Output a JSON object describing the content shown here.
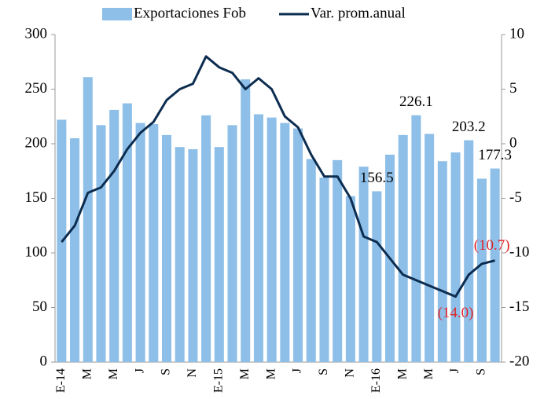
{
  "chart_data": {
    "type": "bar-line",
    "categories": [
      "E-14",
      null,
      "M",
      null,
      "M",
      null,
      "J",
      null,
      "S",
      null,
      "N",
      null,
      "E-15",
      null,
      "M",
      null,
      "M",
      null,
      "J",
      null,
      "S",
      null,
      "N",
      null,
      "E-16",
      null,
      "M",
      null,
      "M",
      null,
      "J",
      null,
      "S",
      null
    ],
    "series": [
      {
        "name": "Exportaciones Fob",
        "type": "bar",
        "color": "#8dbfe8",
        "values": [
          222,
          205,
          261,
          217,
          231,
          237,
          219,
          218,
          208,
          197,
          195,
          226,
          197,
          217,
          259,
          227,
          224,
          219,
          214,
          186,
          169,
          185,
          152,
          179,
          156.5,
          190,
          208,
          226.1,
          209,
          184,
          192,
          203.2,
          168,
          177.3
        ],
        "value_labels": [
          null,
          null,
          null,
          null,
          null,
          null,
          null,
          null,
          null,
          null,
          null,
          null,
          null,
          null,
          null,
          null,
          null,
          null,
          null,
          null,
          null,
          null,
          null,
          null,
          "156.5",
          null,
          null,
          "226.1",
          null,
          null,
          null,
          "203.2",
          null,
          "177.3"
        ]
      },
      {
        "name": "Var. prom.anual",
        "type": "line",
        "axis": "y2",
        "color": "#0d2d50",
        "values": [
          -9,
          -7.5,
          -4.5,
          -4,
          -2.5,
          -0.5,
          1,
          2,
          4,
          5,
          5.5,
          8,
          7,
          6.5,
          5,
          6,
          5,
          2.5,
          1.5,
          -1,
          -3,
          -3,
          -5,
          -8.5,
          -9,
          -10.5,
          -12,
          -12.5,
          -13,
          -13.5,
          -14.0,
          -12,
          -11,
          -10.7
        ],
        "value_labels": [
          null,
          null,
          null,
          null,
          null,
          null,
          null,
          null,
          null,
          null,
          null,
          null,
          null,
          null,
          null,
          null,
          null,
          null,
          null,
          null,
          null,
          null,
          null,
          null,
          null,
          null,
          null,
          null,
          null,
          null,
          "(14.0)",
          null,
          null,
          "(10.7)"
        ],
        "label_color": "#e0242a"
      }
    ],
    "ylim": [
      0,
      300
    ],
    "yticks": [
      0,
      50,
      100,
      150,
      200,
      250,
      300
    ],
    "y2lim": [
      -20,
      10
    ],
    "y2ticks": [
      -20,
      -15,
      -10,
      -5,
      0,
      5,
      10
    ],
    "legend": "top"
  }
}
